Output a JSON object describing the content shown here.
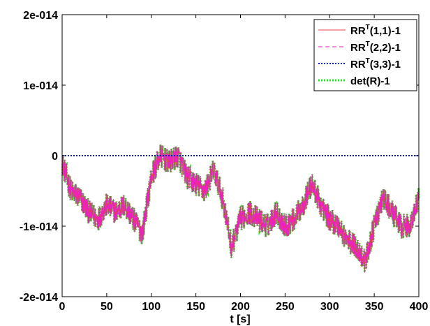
{
  "chart_data": {
    "type": "line",
    "title": "",
    "xlabel": "t [s]",
    "ylabel": "",
    "xlim": [
      0,
      400
    ],
    "ylim": [
      -2e-14,
      2e-14
    ],
    "grid": false,
    "legend_position": "top-right",
    "x_ticks": [
      0,
      50,
      100,
      150,
      200,
      250,
      300,
      350,
      400
    ],
    "x_tick_labels": [
      "0",
      "50",
      "100",
      "150",
      "200",
      "250",
      "300",
      "350",
      "400"
    ],
    "y_ticks": [
      -2e-14,
      -1e-14,
      0,
      1e-14,
      2e-14
    ],
    "y_tick_labels": [
      "-2e-014",
      "-1e-014",
      "0",
      "1e-014",
      "2e-014"
    ],
    "x": [
      0,
      10,
      20,
      30,
      40,
      50,
      60,
      70,
      80,
      90,
      100,
      110,
      120,
      130,
      140,
      150,
      160,
      170,
      180,
      190,
      200,
      210,
      220,
      230,
      240,
      250,
      260,
      270,
      280,
      290,
      300,
      310,
      320,
      330,
      340,
      350,
      360,
      370,
      380,
      390,
      400
    ],
    "series": [
      {
        "name": "RR",
        "name_sup": "T",
        "name_suffix": "(1,1)-1",
        "color": "#e8413c",
        "dash": "solid",
        "values": [
          -1e-15,
          -5e-15,
          -6e-15,
          -8e-15,
          -9e-15,
          -7e-15,
          -8e-15,
          -7e-15,
          -9e-15,
          -1.1e-14,
          -3e-15,
          0.0,
          -1e-15,
          0.0,
          -3e-15,
          -4e-15,
          -5e-15,
          -2e-15,
          -6e-15,
          -1.3e-14,
          -9e-15,
          -8e-15,
          -9e-15,
          -1e-14,
          -8e-15,
          -1e-14,
          -9e-15,
          -7e-15,
          -4e-15,
          -7e-15,
          -9e-15,
          -1e-14,
          -1.2e-14,
          -1.3e-14,
          -1.5e-14,
          -1e-14,
          -6e-15,
          -8e-15,
          -1e-14,
          -1e-14,
          -6e-15
        ]
      },
      {
        "name": "RR",
        "name_sup": "T",
        "name_suffix": "(2,2)-1",
        "color": "#ee1ecf",
        "dash": "dashed",
        "values": [
          -1e-15,
          -5e-15,
          -6e-15,
          -8e-15,
          -9e-15,
          -7e-15,
          -8e-15,
          -7e-15,
          -9e-15,
          -1.1e-14,
          -3e-15,
          0.0,
          -1e-15,
          0.0,
          -3e-15,
          -4e-15,
          -5e-15,
          -2e-15,
          -6e-15,
          -1.3e-14,
          -9e-15,
          -8e-15,
          -9e-15,
          -1e-14,
          -8e-15,
          -1e-14,
          -9e-15,
          -7e-15,
          -4e-15,
          -7e-15,
          -9e-15,
          -1e-14,
          -1.2e-14,
          -1.3e-14,
          -1.5e-14,
          -1e-14,
          -6e-15,
          -8e-15,
          -1e-14,
          -1e-14,
          -6e-15
        ]
      },
      {
        "name": "RR",
        "name_sup": "T",
        "name_suffix": "(3,3)-1",
        "color": "#0a18d6",
        "dash": "dotted",
        "values": [
          0,
          0,
          0,
          0,
          0,
          0,
          0,
          0,
          0,
          0,
          0,
          0,
          0,
          0,
          0,
          0,
          0,
          0,
          0,
          0,
          0,
          0,
          0,
          0,
          0,
          0,
          0,
          0,
          0,
          0,
          0,
          0,
          0,
          0,
          0,
          0,
          0,
          0,
          0,
          0,
          0
        ]
      },
      {
        "name": "det(R)-1",
        "name_sup": "",
        "name_suffix": "",
        "color": "#1ee81e",
        "dash": "dotted",
        "values": [
          -1e-15,
          -5e-15,
          -6e-15,
          -8e-15,
          -9e-15,
          -7e-15,
          -8e-15,
          -7e-15,
          -9e-15,
          -1.1e-14,
          -3e-15,
          0.0,
          -1e-15,
          0.0,
          -3e-15,
          -4e-15,
          -5e-15,
          -2e-15,
          -6e-15,
          -1.3e-14,
          -9e-15,
          -8e-15,
          -9e-15,
          -1e-14,
          -8e-15,
          -1e-14,
          -9e-15,
          -7e-15,
          -4e-15,
          -7e-15,
          -9e-15,
          -1e-14,
          -1.2e-14,
          -1.3e-14,
          -1.5e-14,
          -1e-14,
          -6e-15,
          -8e-15,
          -1e-14,
          -1e-14,
          -6e-15
        ]
      }
    ]
  }
}
